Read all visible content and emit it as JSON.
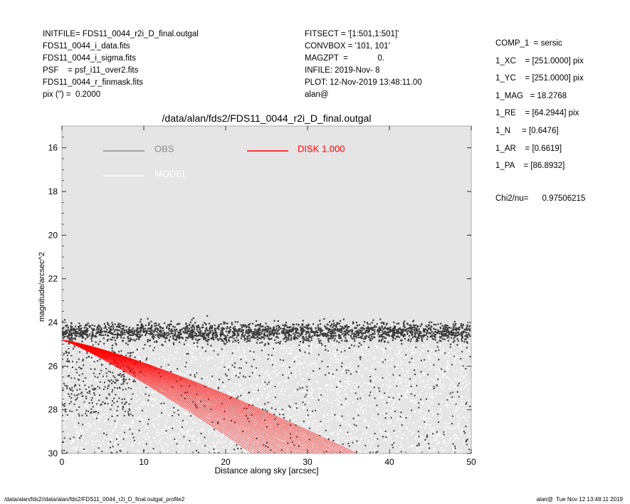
{
  "header_left": [
    "INITFILE= FDS11_0044_r2i_D_final.outgal",
    "FDS11_0044_i_data.fits",
    "FDS11_0044_i_sigma.fits",
    "PSF    = psf_i11_over2.fits",
    "FDS11_0044_r_finmask.fits",
    "pix (\") =  0.2000"
  ],
  "header_middle": [
    "FITSECT = '[1:501,1:501]'",
    "CONVBOX = '101, 101'",
    "MAGZPT  =             0.",
    "INFILE: 2019-Nov- 8",
    "PLOT: 12-Nov-2019 13:48:11.00",
    "alan@"
  ],
  "header_right": [
    "COMP_1  = sersic",
    "1_XC    = [251.0000] pix",
    "1_YC    = [251.0000] pix",
    "1_MAG   = 18.2768",
    "1_RE    = [64.2944] pix",
    "1_N     = [0.6476]",
    "1_AR    = [0.6619]",
    "1_PA    = [86.8932]"
  ],
  "chi2": "Chi2/nu=      0.97506215",
  "footer_left": "/data/alan/fds2//data/alan/fds2/FDS11_0044_r2i_D_final.outgal_profile2",
  "footer_right": "alan@  Tue Nov 12 13:48:11 2019",
  "colors": {
    "plot_bg": "#e5e5e5",
    "obs": "#3a3a3a",
    "model": "#ffffff",
    "disk": "#ff0000",
    "legend_obs": "#8c8c8c",
    "axis": "#000000"
  },
  "chart_data": {
    "type": "scatter",
    "title": "/data/alan/fds2/FDS11_0044_r2i_D_final.outgal",
    "xlabel": "Distance along sky [arcsec]",
    "ylabel": "magnitude/arcsec^2",
    "xlim": [
      0,
      50
    ],
    "ylim": [
      30,
      15
    ],
    "y_inverted": true,
    "xticks": [
      "0",
      "10",
      "20",
      "30",
      "40",
      "50"
    ],
    "yticks": [
      "16",
      "18",
      "20",
      "22",
      "24",
      "26",
      "28",
      "30"
    ],
    "legend": [
      {
        "label": "OBS",
        "style": "line"
      },
      {
        "label": "MODEL",
        "style": "line"
      },
      {
        "label": "DISK  1.000",
        "style": "line"
      }
    ],
    "series": [
      {
        "name": "OBS",
        "description": "dense band of points near 24.2-24.8 mag/arcsec^2 across 0-50 arcsec plus scattered points 25-30"
      },
      {
        "name": "MODEL",
        "description": "white points filling region between roughly 25 and 30 mag/arcsec^2"
      },
      {
        "name": "DISK  1.000",
        "description": "fan of sersic profiles starting at 24.8 at r=0, lower edge reaching 30 at r~23, upper edge reaching 30 at r~36",
        "start": [
          0,
          24.8
        ],
        "lower_edge_end": [
          23.3,
          30
        ],
        "upper_edge_end": [
          36,
          30
        ]
      }
    ],
    "grid": false,
    "legend_position": "top-left"
  }
}
